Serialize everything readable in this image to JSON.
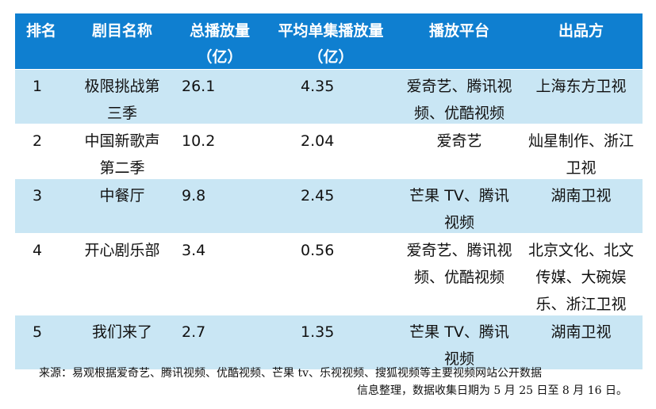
{
  "headers": {
    "rank": "排名",
    "title": "剧目名称",
    "total": "总播放量",
    "total_unit": "（亿）",
    "avg": "平均单集播放量",
    "avg_unit": "（亿）",
    "platform": "播放平台",
    "producer": "出品方"
  },
  "rows": [
    {
      "rank": "1",
      "title_lines": [
        "极限挑战第",
        "三季"
      ],
      "total": "26.1",
      "avg": "4.35",
      "platform_lines": [
        "爱奇艺、腾讯视",
        "频、优酷视频"
      ],
      "producer_lines": [
        "上海东方卫视"
      ]
    },
    {
      "rank": "2",
      "title_lines": [
        "中国新歌声",
        "第二季"
      ],
      "total": "10.2",
      "avg": "2.04",
      "platform_lines": [
        "爱奇艺"
      ],
      "producer_lines": [
        "灿星制作、浙江",
        "卫视"
      ]
    },
    {
      "rank": "3",
      "title_lines": [
        "中餐厅"
      ],
      "total": "9.8",
      "avg": "2.45",
      "platform_lines": [
        "芒果 TV、腾讯",
        "视频"
      ],
      "producer_lines": [
        "湖南卫视"
      ]
    },
    {
      "rank": "4",
      "title_lines": [
        "开心剧乐部"
      ],
      "total": "3.4",
      "avg": "0.56",
      "platform_lines": [
        "爱奇艺、腾讯视",
        "频、优酷视频"
      ],
      "producer_lines": [
        "北京文化、北文",
        "传媒、大碗娱",
        "乐、浙江卫视"
      ]
    },
    {
      "rank": "5",
      "title_lines": [
        "我们来了"
      ],
      "total": "2.7",
      "avg": "1.35",
      "platform_lines": [
        "芒果 TV、腾讯",
        "视频"
      ],
      "producer_lines": [
        "湖南卫视"
      ]
    }
  ],
  "footer": {
    "line1": "来源：易观根据爱奇艺、腾讯视频、优酷视频、芒果 tv、乐视视频、搜狐视频等主要视频网站公开数据",
    "line2": "信息整理，数据收集日期为 5 月 25 日至 8 月 16 日。"
  }
}
